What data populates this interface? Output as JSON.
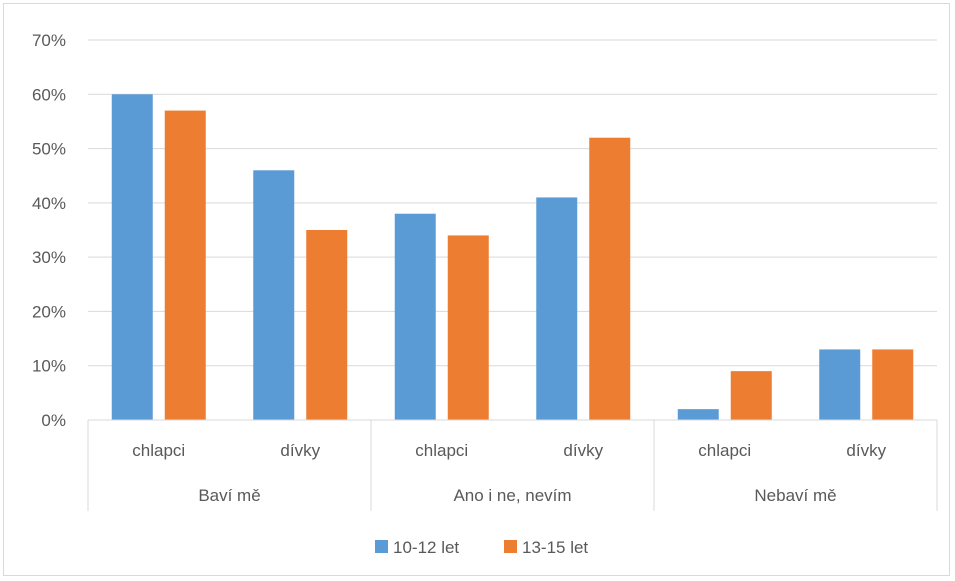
{
  "chart_data": {
    "type": "bar",
    "title": "",
    "xlabel": "",
    "ylabel": "",
    "ylim": [
      0,
      0.7
    ],
    "yticks": [
      "0%",
      "10%",
      "20%",
      "30%",
      "40%",
      "50%",
      "60%",
      "70%"
    ],
    "groups": [
      "Baví mě",
      "Ano i ne, nevím",
      "Nebaví mě"
    ],
    "categories": [
      "chlapci",
      "dívky",
      "chlapci",
      "dívky",
      "chlapci",
      "dívky"
    ],
    "series": [
      {
        "name": "10-12 let",
        "color": "#5b9bd5",
        "values": [
          0.6,
          0.46,
          0.38,
          0.41,
          0.02,
          0.13
        ]
      },
      {
        "name": "13-15 let",
        "color": "#ed7d31",
        "values": [
          0.57,
          0.35,
          0.34,
          0.52,
          0.09,
          0.13
        ]
      }
    ],
    "grid": true,
    "legend_position": "bottom"
  }
}
